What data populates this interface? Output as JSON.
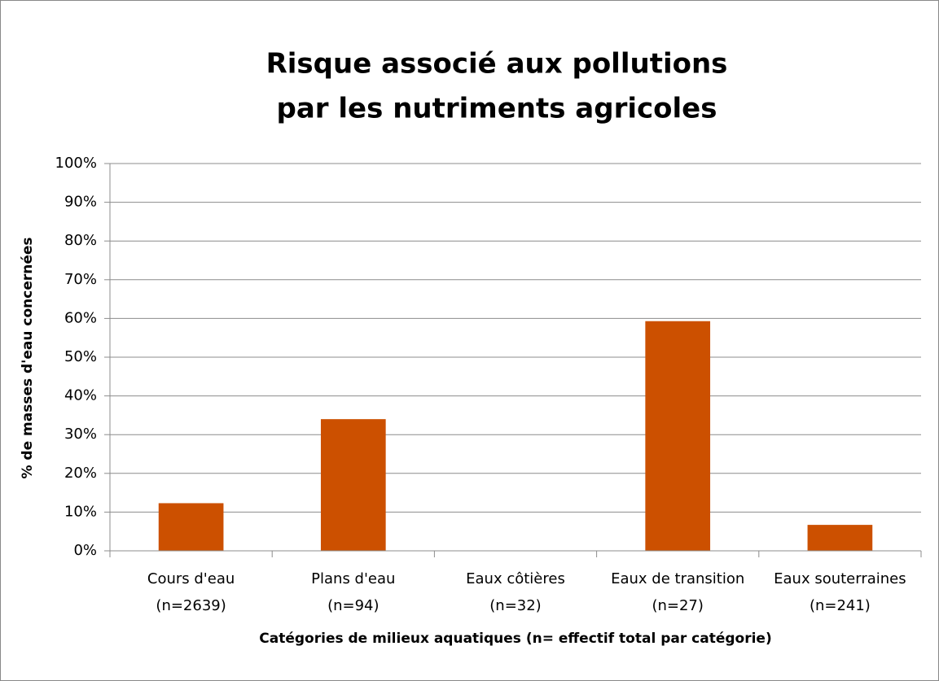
{
  "chart_data": {
    "type": "bar",
    "title": [
      "Risque associé aux pollutions",
      "par les nutriments agricoles"
    ],
    "y_label": "% de masses d'eau concernées",
    "x_label": "Catégories de milieux aquatiques  (n= effectif total par catégorie)",
    "categories": [
      [
        "Cours d'eau",
        "(n=2639)"
      ],
      [
        "Plans d'eau",
        "(n=94)"
      ],
      [
        "Eaux côtières",
        "(n=32)"
      ],
      [
        "Eaux de transition",
        "(n=27)"
      ],
      [
        "Eaux souterraines",
        "(n=241)"
      ]
    ],
    "values": [
      12.3,
      34,
      0,
      59.3,
      6.7
    ],
    "color": "#cc5000",
    "ylim": [
      0,
      100
    ],
    "yticks": [
      {
        "value": 0,
        "label": "0%"
      },
      {
        "value": 10,
        "label": "10%"
      },
      {
        "value": 20,
        "label": "20%"
      },
      {
        "value": 30,
        "label": "30%"
      },
      {
        "value": 40,
        "label": "40%"
      },
      {
        "value": 50,
        "label": "50%"
      },
      {
        "value": 60,
        "label": "60%"
      },
      {
        "value": 70,
        "label": "70%"
      },
      {
        "value": 80,
        "label": "80%"
      },
      {
        "value": 90,
        "label": "90%"
      },
      {
        "value": 100,
        "label": "100%"
      }
    ],
    "grid": true
  }
}
